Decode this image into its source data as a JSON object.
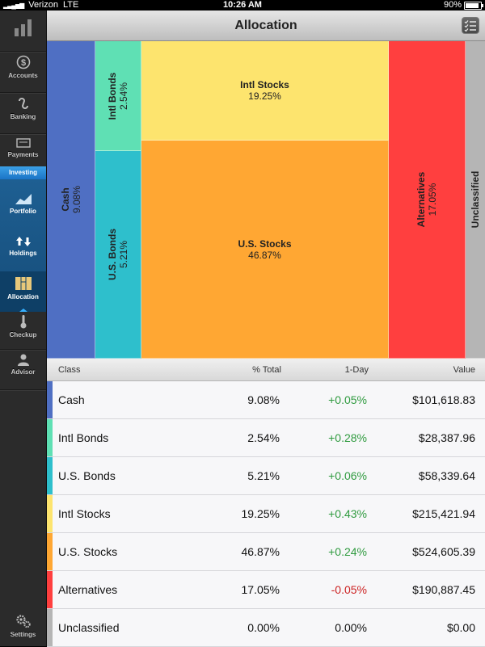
{
  "status_bar": {
    "carrier": "Verizon",
    "network": "LTE",
    "time": "10:26 AM",
    "battery": "90%"
  },
  "sidebar": {
    "items": [
      {
        "label": "Accounts",
        "icon": "dollar-coin-icon"
      },
      {
        "label": "Banking",
        "icon": "banking-icon"
      },
      {
        "label": "Payments",
        "icon": "payments-icon"
      },
      {
        "label": "Checkup",
        "icon": "thermometer-icon"
      },
      {
        "label": "Advisor",
        "icon": "person-icon"
      },
      {
        "label": "Settings",
        "icon": "gears-icon"
      }
    ],
    "investing": {
      "label": "Investing",
      "items": [
        {
          "label": "Portfolio",
          "icon": "area-chart-icon"
        },
        {
          "label": "Holdings",
          "icon": "up-down-arrows-icon"
        },
        {
          "label": "Allocation",
          "icon": "allocation-grid-icon"
        }
      ]
    }
  },
  "header": {
    "title": "Allocation"
  },
  "treemap": {
    "cash": {
      "name": "Cash",
      "pct": "9.08%",
      "color": "#4f6fc3"
    },
    "intl_bonds": {
      "name": "Intl Bonds",
      "pct": "2.54%",
      "color": "#5fe0b4"
    },
    "us_bonds": {
      "name": "U.S. Bonds",
      "pct": "5.21%",
      "color": "#2ebfcc"
    },
    "intl_stocks": {
      "name": "Intl Stocks",
      "pct": "19.25%",
      "color": "#fde46e"
    },
    "us_stocks": {
      "name": "U.S. Stocks",
      "pct": "46.87%",
      "color": "#ffa733"
    },
    "alternatives": {
      "name": "Alternatives",
      "pct": "17.05%",
      "color": "#ff3f3f"
    },
    "unclassified": {
      "name": "Unclassified",
      "color": "#b5b5b5"
    }
  },
  "table": {
    "headers": {
      "class": "Class",
      "pct": "% Total",
      "day": "1-Day",
      "value": "Value"
    },
    "rows": [
      {
        "class": "Cash",
        "pct": "9.08%",
        "day": "+0.05%",
        "value": "$101,618.83",
        "color": "#4f6fc3"
      },
      {
        "class": "Intl Bonds",
        "pct": "2.54%",
        "day": "+0.28%",
        "value": "$28,387.96",
        "color": "#5fe0b4"
      },
      {
        "class": "U.S. Bonds",
        "pct": "5.21%",
        "day": "+0.06%",
        "value": "$58,339.64",
        "color": "#2ebfcc"
      },
      {
        "class": "Intl Stocks",
        "pct": "19.25%",
        "day": "+0.43%",
        "value": "$215,421.94",
        "color": "#fde46e"
      },
      {
        "class": "U.S. Stocks",
        "pct": "46.87%",
        "day": "+0.24%",
        "value": "$524,605.39",
        "color": "#ffa733"
      },
      {
        "class": "Alternatives",
        "pct": "17.05%",
        "day": "-0.05%",
        "value": "$190,887.45",
        "color": "#ff3f3f"
      },
      {
        "class": "Unclassified",
        "pct": "0.00%",
        "day": "0.00%",
        "value": "$0.00",
        "color": "#b5b5b5"
      }
    ]
  }
}
